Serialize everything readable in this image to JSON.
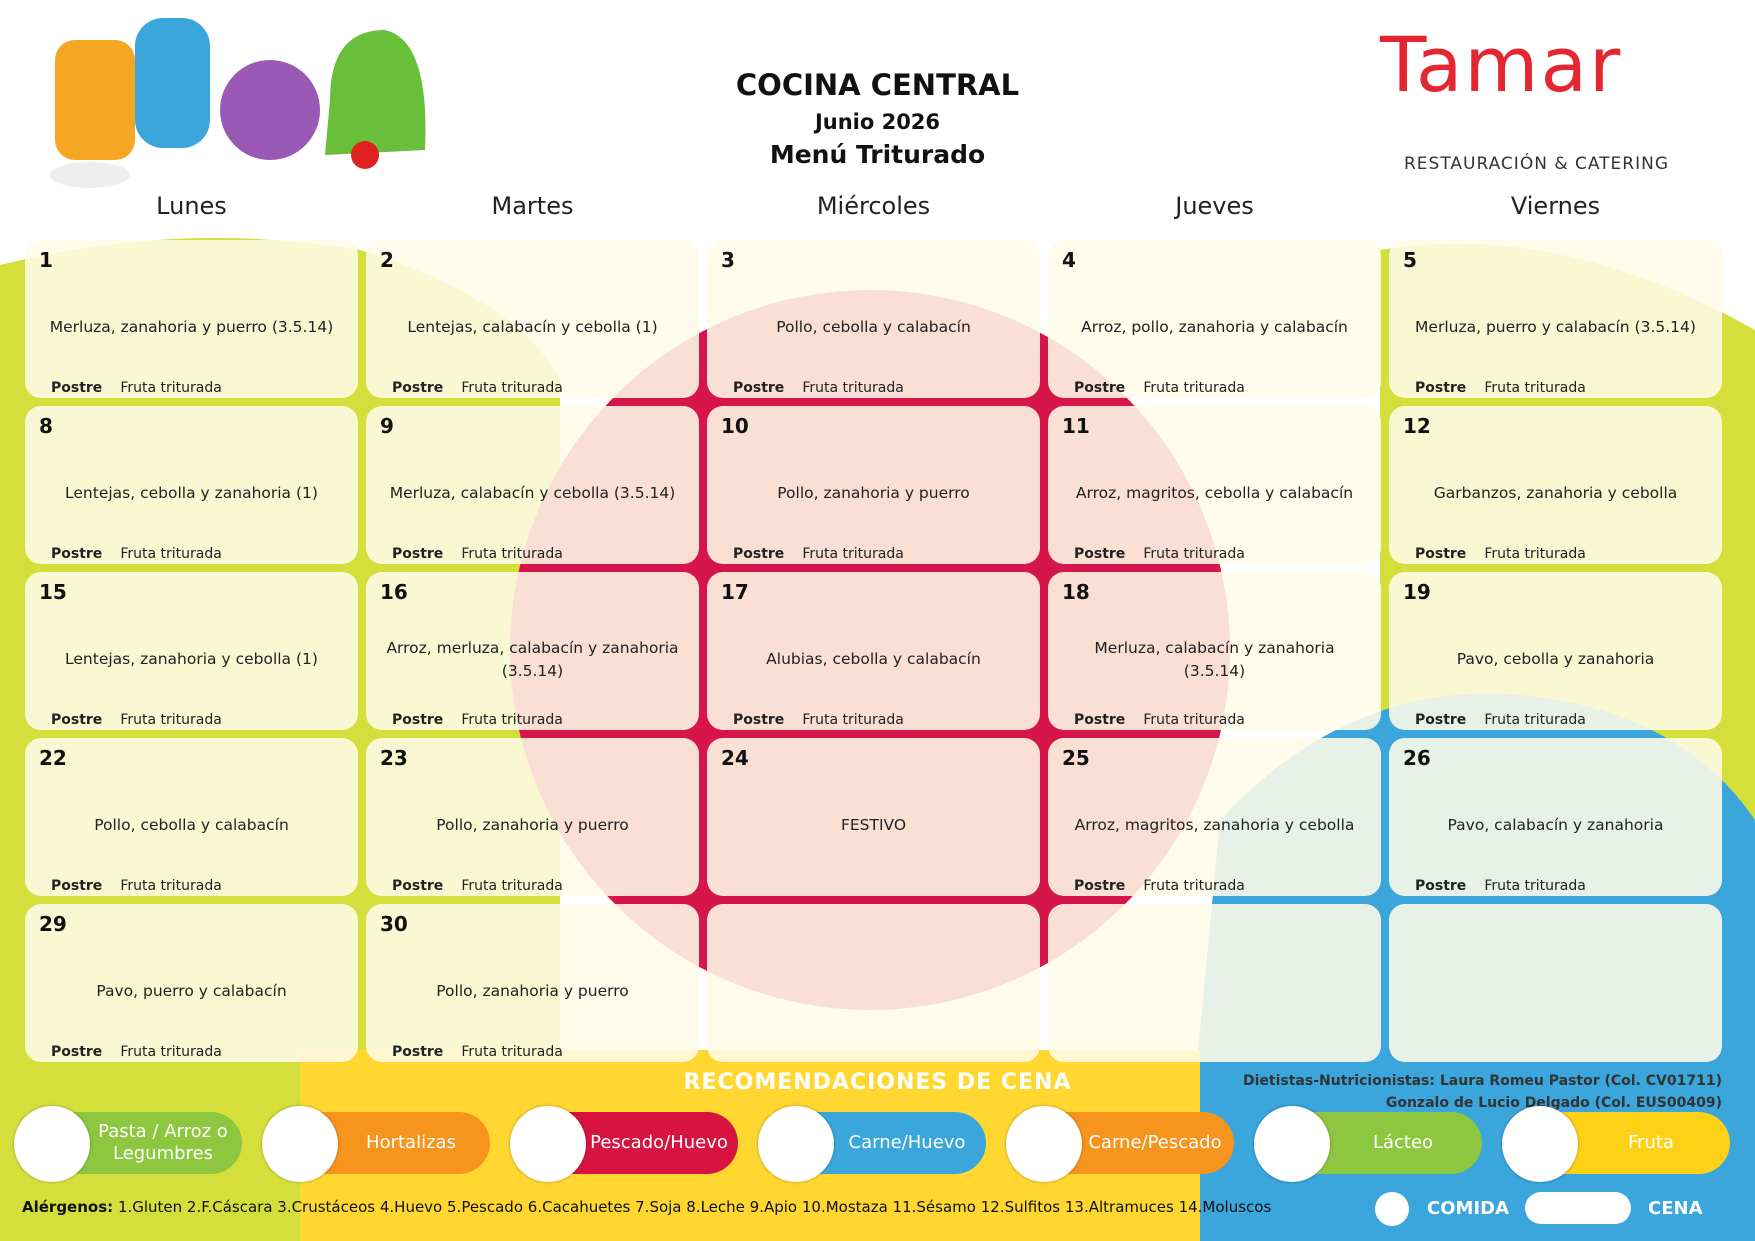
{
  "header": {
    "title": "COCINA CENTRAL",
    "month": "Junio 2026",
    "menu": "Menú Triturado"
  },
  "logo": {
    "name": "Tamar",
    "tagline": "RESTAURACIÓN & CATERING"
  },
  "weekdays": [
    "Lunes",
    "Martes",
    "Miércoles",
    "Jueves",
    "Viernes"
  ],
  "dessert_label": "Postre",
  "weeks": [
    [
      {
        "day": 1,
        "dish": "Merluza, zanahoria y puerro (3.5.14)",
        "dessert": "Fruta triturada"
      },
      {
        "day": 2,
        "dish": "Lentejas, calabacín y cebolla (1)",
        "dessert": "Fruta triturada"
      },
      {
        "day": 3,
        "dish": "Pollo, cebolla y calabacín",
        "dessert": "Fruta triturada"
      },
      {
        "day": 4,
        "dish": "Arroz, pollo, zanahoria y calabacín",
        "dessert": "Fruta triturada"
      },
      {
        "day": 5,
        "dish": "Merluza, puerro y calabacín (3.5.14)",
        "dessert": "Fruta triturada"
      }
    ],
    [
      {
        "day": 8,
        "dish": "Lentejas, cebolla y zanahoria (1)",
        "dessert": "Fruta triturada"
      },
      {
        "day": 9,
        "dish": "Merluza, calabacín y cebolla (3.5.14)",
        "dessert": "Fruta triturada"
      },
      {
        "day": 10,
        "dish": "Pollo, zanahoria y puerro",
        "dessert": "Fruta triturada"
      },
      {
        "day": 11,
        "dish": "Arroz, magritos, cebolla y calabacín",
        "dessert": "Fruta triturada"
      },
      {
        "day": 12,
        "dish": "Garbanzos, zanahoria y cebolla",
        "dessert": "Fruta triturada"
      }
    ],
    [
      {
        "day": 15,
        "dish": "Lentejas, zanahoria y cebolla (1)",
        "dessert": "Fruta triturada"
      },
      {
        "day": 16,
        "dish": "Arroz, merluza, calabacín y zanahoria (3.5.14)",
        "dessert": "Fruta triturada"
      },
      {
        "day": 17,
        "dish": "Alubias, cebolla y calabacín",
        "dessert": "Fruta triturada"
      },
      {
        "day": 18,
        "dish": "Merluza, calabacín y zanahoria (3.5.14)",
        "dessert": "Fruta triturada"
      },
      {
        "day": 19,
        "dish": "Pavo, cebolla y zanahoria",
        "dessert": "Fruta triturada"
      }
    ],
    [
      {
        "day": 22,
        "dish": "Pollo, cebolla y calabacín",
        "dessert": "Fruta triturada"
      },
      {
        "day": 23,
        "dish": "Pollo, zanahoria y puerro",
        "dessert": "Fruta triturada"
      },
      {
        "day": 24,
        "dish": "FESTIVO"
      },
      {
        "day": 25,
        "dish": "Arroz, magritos, zanahoria y cebolla",
        "dessert": "Fruta triturada"
      },
      {
        "day": 26,
        "dish": "Pavo, calabacín y zanahoria",
        "dessert": "Fruta triturada"
      }
    ],
    [
      {
        "day": 29,
        "dish": "Pavo, puerro y calabacín",
        "dessert": "Fruta triturada"
      },
      {
        "day": 30,
        "dish": "Pollo, zanahoria y puerro",
        "dessert": "Fruta triturada"
      }
    ]
  ],
  "footer": {
    "recommendations_title": "RECOMENDACIONES DE CENA",
    "dietitians": [
      "Dietistas-Nutricionistas: Laura Romeu Pastor (Col. CV01711)",
      "Gonzalo de Lucio Delgado (Col. EUS00409)"
    ],
    "food_groups": [
      "Pasta / Arroz o Legumbres",
      "Hortalizas",
      "Pescado/Huevo",
      "Carne/Huevo",
      "Carne/Pescado",
      "Lácteo",
      "Fruta"
    ],
    "allergens_label": "Alérgenos:",
    "allergens": "1.Gluten 2.F.Cáscara 3.Crustáceos 4.Huevo 5.Pescado 6.Cacahuetes 7.Soja 8.Leche 9.Apio 10.Mostaza 11.Sésamo 12.Sulfitos 13.Altramuces 14.Moluscos",
    "legend": [
      "COMIDA",
      "CENA"
    ]
  }
}
